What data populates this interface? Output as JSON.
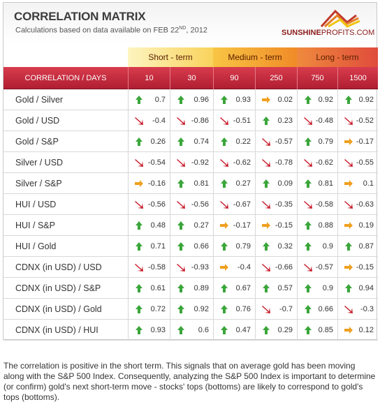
{
  "header": {
    "title": "CORRELATION MATRIX",
    "subtitle_prefix": "Calculations based on data available on  FEB 22",
    "subtitle_sup": "ND",
    "subtitle_suffix": ", 2012",
    "logo_main": "SUNSHINE",
    "logo_thin": "PROFITS.COM"
  },
  "terms": [
    "Short - term",
    "Medium - term",
    "Long - term"
  ],
  "columns": {
    "first": "CORRELATION / DAYS",
    "days": [
      "10",
      "30",
      "90",
      "250",
      "750",
      "1500"
    ]
  },
  "colors": {
    "up": "#3aa63a",
    "down": "#c81e2d",
    "flat": "#f0a020",
    "header_red": "#c32a3d"
  },
  "rows": [
    {
      "label": "Gold / Silver",
      "values": [
        "0.7",
        "0.96",
        "0.93",
        "0.02",
        "0.92",
        "0.92"
      ],
      "trend": [
        "up",
        "up",
        "up",
        "flat",
        "up",
        "up"
      ]
    },
    {
      "label": "Gold / USD",
      "values": [
        "-0.4",
        "-0.86",
        "-0.51",
        "0.23",
        "-0.48",
        "-0.52"
      ],
      "trend": [
        "down",
        "down",
        "down",
        "up",
        "down",
        "down"
      ]
    },
    {
      "label": "Gold / S&P",
      "values": [
        "0.26",
        "0.74",
        "0.22",
        "-0.57",
        "0.79",
        "-0.17"
      ],
      "trend": [
        "up",
        "up",
        "up",
        "down",
        "up",
        "flat"
      ]
    },
    {
      "label": "Silver / USD",
      "values": [
        "-0.54",
        "-0.92",
        "-0.62",
        "-0.78",
        "-0.62",
        "-0.55"
      ],
      "trend": [
        "down",
        "down",
        "down",
        "down",
        "down",
        "down"
      ]
    },
    {
      "label": "Silver / S&P",
      "values": [
        "-0.16",
        "0.81",
        "0.27",
        "0.09",
        "0.81",
        "0.1"
      ],
      "trend": [
        "flat",
        "up",
        "up",
        "up",
        "up",
        "flat"
      ]
    },
    {
      "label": "HUI / USD",
      "values": [
        "-0.56",
        "-0.56",
        "-0.67",
        "-0.35",
        "-0.58",
        "-0.63"
      ],
      "trend": [
        "down",
        "down",
        "down",
        "down",
        "down",
        "down"
      ]
    },
    {
      "label": "HUI / S&P",
      "values": [
        "0.48",
        "0.27",
        "-0.17",
        "-0.15",
        "0.88",
        "0.19"
      ],
      "trend": [
        "up",
        "up",
        "flat",
        "flat",
        "up",
        "flat"
      ]
    },
    {
      "label": "HUI / Gold",
      "values": [
        "0.71",
        "0.66",
        "0.79",
        "0.32",
        "0.9",
        "0.87"
      ],
      "trend": [
        "up",
        "up",
        "up",
        "up",
        "up",
        "up"
      ]
    },
    {
      "label": "CDNX (in USD) / USD",
      "values": [
        "-0.58",
        "-0.93",
        "-0.4",
        "-0.66",
        "-0.57",
        "-0.15"
      ],
      "trend": [
        "down",
        "down",
        "flat",
        "down",
        "down",
        "flat"
      ]
    },
    {
      "label": "CDNX (in USD) / S&P",
      "values": [
        "0.61",
        "0.89",
        "0.67",
        "0.57",
        "0.9",
        "0.94"
      ],
      "trend": [
        "up",
        "up",
        "up",
        "up",
        "up",
        "up"
      ]
    },
    {
      "label": "CDNX (in USD) / Gold",
      "values": [
        "0.72",
        "0.92",
        "0.76",
        "-0.7",
        "0.66",
        "-0.3"
      ],
      "trend": [
        "up",
        "up",
        "up",
        "down",
        "up",
        "down"
      ]
    },
    {
      "label": "CDNX (in USD) / HUI",
      "values": [
        "0.93",
        "0.6",
        "0.47",
        "0.29",
        "0.85",
        "0.12"
      ],
      "trend": [
        "up",
        "up",
        "up",
        "up",
        "up",
        "flat"
      ]
    }
  ],
  "note": "The correlation is positive in the short term. This signals that on average gold has been moving along with the S&P 500 Index. Consequently, analyzing the S&P 500 Index is important to determine (or confirm) gold's next short-term move - stocks' tops (bottoms) are likely to correspond to gold's tops (bottoms)."
}
